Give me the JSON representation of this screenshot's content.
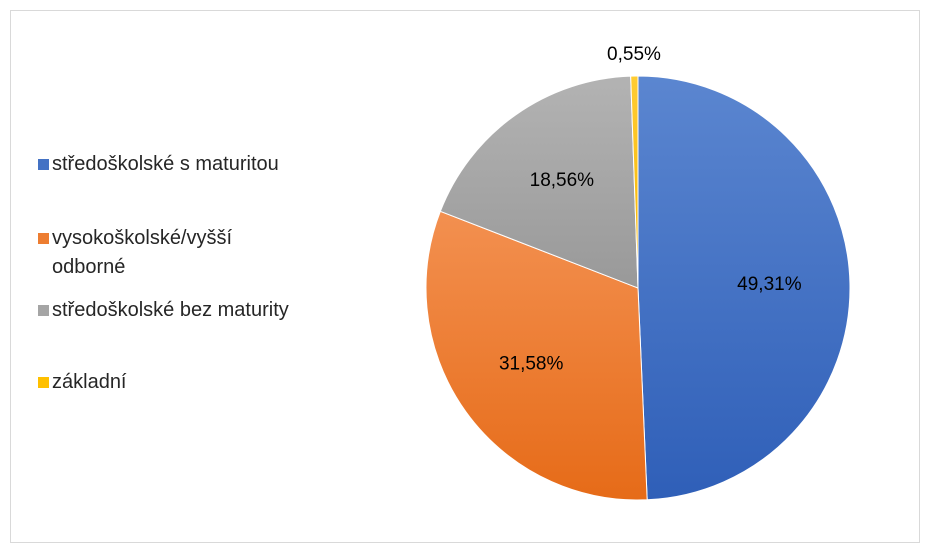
{
  "chart_data": {
    "type": "pie",
    "categories": [
      "středoškolské s maturitou",
      "vysokoškolské/vyšší odborné",
      "středoškolské bez maturity",
      "základní"
    ],
    "values": [
      49.31,
      31.58,
      18.56,
      0.55
    ],
    "data_labels": [
      "49,31%",
      "31,58%",
      "18,56%",
      "0,55%"
    ],
    "colors": [
      "#4472c4",
      "#ed7d31",
      "#a5a5a5",
      "#ffc000"
    ],
    "start_angle": "12 o'clock",
    "direction": "clockwise",
    "legend_position": "left"
  },
  "legend": {
    "items": [
      {
        "label": "středoškolské s maturitou",
        "color": "#4472c4"
      },
      {
        "label": "vysokoškolské/vyšší odborné",
        "color": "#ed7d31"
      },
      {
        "label": "středoškolské bez maturity",
        "color": "#a5a5a5"
      },
      {
        "label": "základní",
        "color": "#ffc000"
      }
    ]
  }
}
